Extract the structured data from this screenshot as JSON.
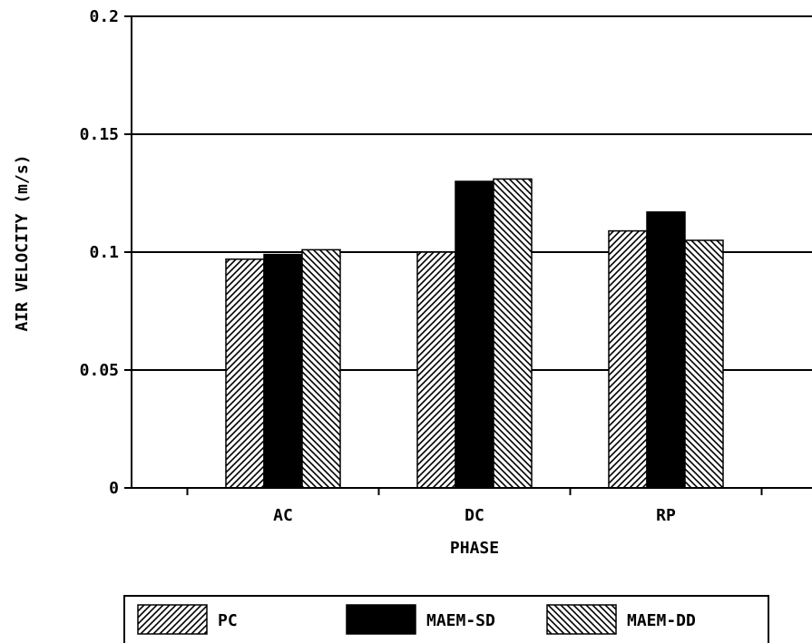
{
  "chart_data": {
    "type": "bar",
    "title": "",
    "xlabel": "PHASE",
    "ylabel": "AIR VELOCITY (m/s)",
    "ylim": [
      0,
      0.2
    ],
    "yticks": [
      0,
      0.05,
      0.1,
      0.15,
      0.2
    ],
    "ytick_labels": [
      "0",
      "0.05",
      "0.1",
      "0.15",
      "0.2"
    ],
    "grid": "horizontal",
    "legend_position": "bottom",
    "categories": [
      "AC",
      "DC",
      "RP"
    ],
    "series": [
      {
        "name": "PC",
        "values": [
          0.097,
          0.1,
          0.109
        ],
        "pattern": "hatch-forward",
        "color": "#000000"
      },
      {
        "name": "MAEM-SD",
        "values": [
          0.099,
          0.13,
          0.117
        ],
        "pattern": "solid",
        "color": "#000000"
      },
      {
        "name": "MAEM-DD",
        "values": [
          0.101,
          0.131,
          0.105
        ],
        "pattern": "hatch-back",
        "color": "#000000"
      }
    ]
  }
}
